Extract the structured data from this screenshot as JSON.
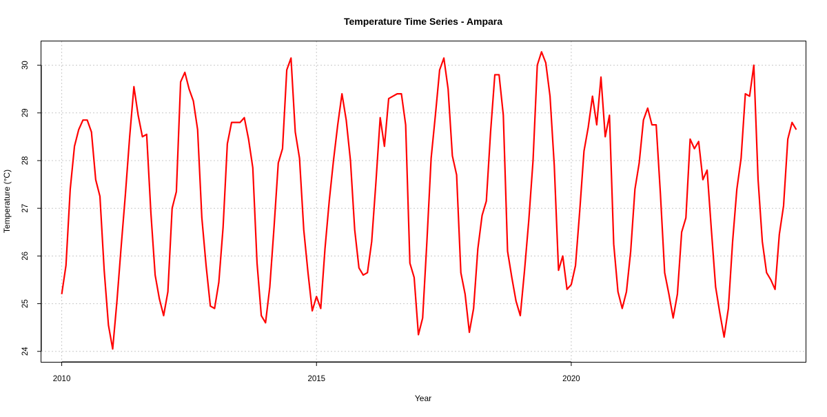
{
  "chart_data": {
    "type": "line",
    "title": "Temperature Time Series - Ampara",
    "xlabel": "Year",
    "ylabel": "Temperature (°C)",
    "xlim": [
      2009.6,
      2024.6
    ],
    "ylim": [
      23.78,
      30.5
    ],
    "x_ticks": [
      2010,
      2015,
      2020
    ],
    "y_ticks": [
      24,
      25,
      26,
      27,
      28,
      29,
      30
    ],
    "grid": true,
    "line_color": "#ff0000",
    "series": [
      {
        "color": "#ff0000",
        "values": [
          25.2,
          25.8,
          27.4,
          28.3,
          28.65,
          28.85,
          28.85,
          28.6,
          27.6,
          27.25,
          25.7,
          24.55,
          24.05,
          25.05,
          26.2,
          27.3,
          28.5,
          29.55,
          28.95,
          28.5,
          28.55,
          26.9,
          25.6,
          25.1,
          24.75,
          25.25,
          27.0,
          27.35,
          29.65,
          29.85,
          29.5,
          29.25,
          28.65,
          26.8,
          25.8,
          24.95,
          24.9,
          25.45,
          26.6,
          28.35,
          28.8,
          28.8,
          28.8,
          28.9,
          28.45,
          27.85,
          25.85,
          24.75,
          24.6,
          25.35,
          26.6,
          27.95,
          28.25,
          29.9,
          30.15,
          28.6,
          28.05,
          26.55,
          25.65,
          24.85,
          25.15,
          24.9,
          26.15,
          27.15,
          28.0,
          28.75,
          29.4,
          28.85,
          28.0,
          26.55,
          25.75,
          25.6,
          25.65,
          26.3,
          27.55,
          28.9,
          28.3,
          29.3,
          29.35,
          29.4,
          29.4,
          28.75,
          25.85,
          25.55,
          24.35,
          24.7,
          26.3,
          28.05,
          28.95,
          29.9,
          30.15,
          29.5,
          28.1,
          27.7,
          25.65,
          25.2,
          24.4,
          24.9,
          26.15,
          26.85,
          27.15,
          28.6,
          29.8,
          29.8,
          28.95,
          26.1,
          25.55,
          25.05,
          24.75,
          25.7,
          26.75,
          28.0,
          30.0,
          30.28,
          30.05,
          29.35,
          27.9,
          25.7,
          26.0,
          25.3,
          25.4,
          25.8,
          26.95,
          28.2,
          28.7,
          29.35,
          28.75,
          29.75,
          28.5,
          28.95,
          26.25,
          25.25,
          24.9,
          25.25,
          26.1,
          27.4,
          27.95,
          28.85,
          29.1,
          28.75,
          28.75,
          27.3,
          25.65,
          25.2,
          24.7,
          25.2,
          26.5,
          26.8,
          28.45,
          28.25,
          28.4,
          27.6,
          27.8,
          26.55,
          25.35,
          24.8,
          24.3,
          24.9,
          26.3,
          27.4,
          28.05,
          29.4,
          29.35,
          30.0,
          27.6,
          26.3,
          25.65,
          25.5,
          25.3,
          26.45,
          27.05,
          28.45,
          28.8,
          28.65
        ]
      }
    ],
    "x_start": 2010.0,
    "x_step": 0.08333333
  }
}
